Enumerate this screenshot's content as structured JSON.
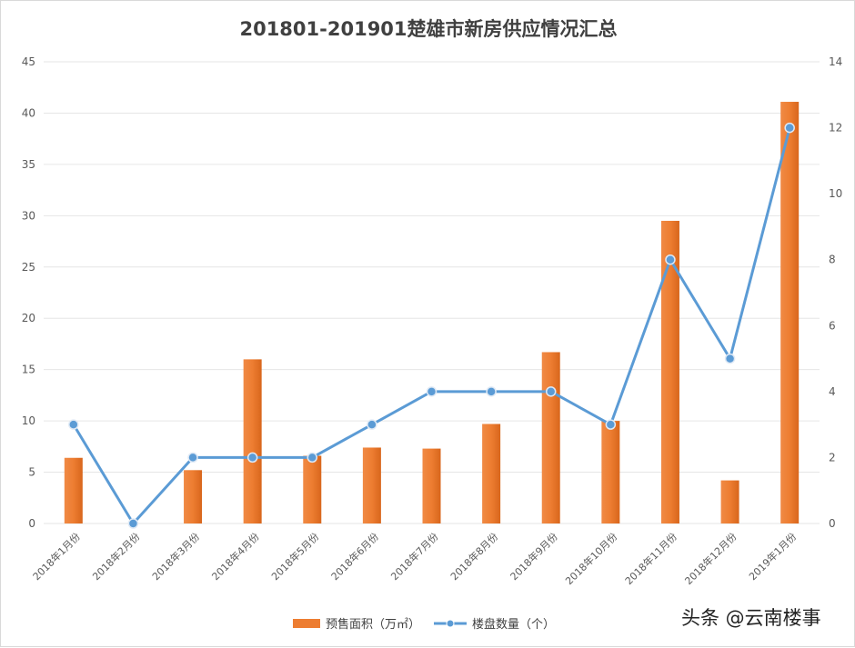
{
  "chart_data": {
    "type": "bar+line",
    "title": "201801-201901楚雄市新房供应情况汇总",
    "categories": [
      "2018年1月份",
      "2018年2月份",
      "2018年3月份",
      "2018年4月份",
      "2018年5月份",
      "2018年6月份",
      "2018年7月份",
      "2018年8月份",
      "2018年9月份",
      "2018年10月份",
      "2018年11月份",
      "2018年12月份",
      "2019年1月份"
    ],
    "series": [
      {
        "name": "预售面积（万㎡）",
        "type": "bar",
        "axis": "left",
        "color": "#ed7d31",
        "values": [
          6.4,
          0,
          5.2,
          16.0,
          6.6,
          7.4,
          7.3,
          9.7,
          16.7,
          10.0,
          29.5,
          4.2,
          41.1
        ]
      },
      {
        "name": "楼盘数量（个）",
        "type": "line",
        "axis": "right",
        "color": "#5b9bd5",
        "values": [
          3,
          0,
          2,
          2,
          2,
          3,
          4,
          4,
          4,
          3,
          8,
          5,
          12
        ]
      }
    ],
    "y_left": {
      "min": 0,
      "max": 45,
      "step": 5,
      "ticks": [
        "0",
        "5",
        "10",
        "15",
        "20",
        "25",
        "30",
        "35",
        "40",
        "45"
      ]
    },
    "y_right": {
      "min": 0,
      "max": 14,
      "step": 2,
      "ticks": [
        "0",
        "2",
        "4",
        "6",
        "8",
        "10",
        "12",
        "14"
      ]
    },
    "legend_position": "bottom",
    "grid": true
  },
  "watermark": "头条 @云南楼事"
}
